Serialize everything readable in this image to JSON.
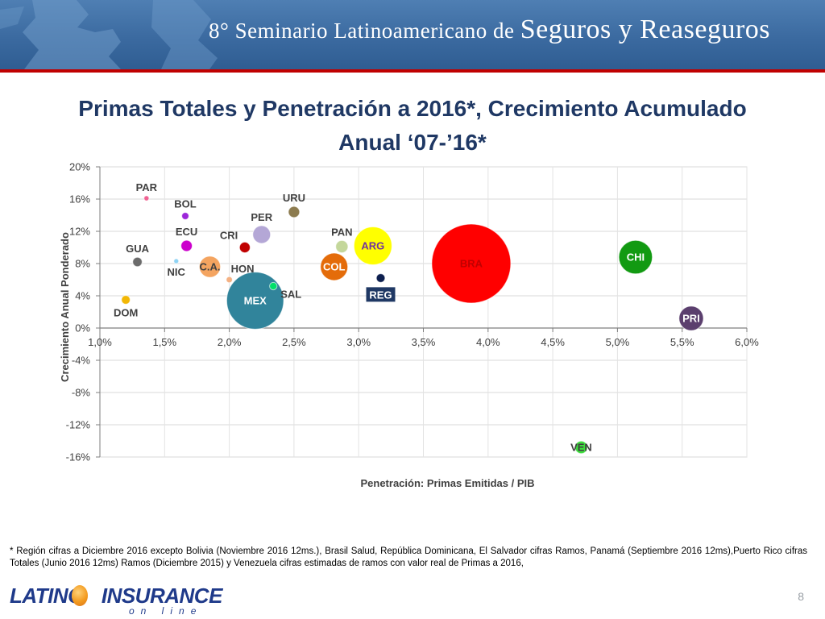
{
  "banner": {
    "title_prefix": "8° Seminario Latinoamericano de ",
    "title_emphasis": "Seguros y Reaseguros"
  },
  "slide": {
    "title_line1": "Primas Totales y Penetración a 2016*, Crecimiento Acumulado",
    "title_line2": "Anual ‘07-’16*",
    "footnote": "* Región cifras a Diciembre 2016 excepto Bolivia (Noviembre 2016 12ms.), Brasil Salud, República Dominicana, El Salvador cifras Ramos, Panamá (Septiembre 2016 12ms),Puerto Rico cifras Totales (Junio 2016 12ms) Ramos (Diciembre 2015) y Venezuela cifras estimadas de ramos con valor real de Primas a 2016,",
    "page_number": "8"
  },
  "logo": {
    "left": "LATINO",
    "right": "INSURANCE",
    "sub": "on line"
  },
  "chart_data": {
    "type": "scatter",
    "bubble": true,
    "title": "",
    "xlabel": "Penetración: Primas Emitidas / PIB",
    "ylabel": "Crecimiento Anual Ponderado",
    "xlim": [
      0.01,
      0.06
    ],
    "ylim": [
      -0.16,
      0.2
    ],
    "x_ticks": [
      0.01,
      0.015,
      0.02,
      0.025,
      0.03,
      0.035,
      0.04,
      0.045,
      0.05,
      0.055,
      0.06
    ],
    "x_tick_labels": [
      "1,0%",
      "1,5%",
      "2,0%",
      "2,5%",
      "3,0%",
      "3,5%",
      "4,0%",
      "4,5%",
      "5,0%",
      "5,5%",
      "6,0%"
    ],
    "y_ticks": [
      0.2,
      0.16,
      0.12,
      0.08,
      0.04,
      0.0,
      -0.04,
      -0.08,
      -0.12,
      -0.16
    ],
    "y_tick_labels": [
      "20%",
      "16%",
      "12%",
      "8%",
      "4%",
      "0%",
      "-4%",
      "-8%",
      "-12%",
      "-16%"
    ],
    "grid": true,
    "legend": "none",
    "points": [
      {
        "label": "PAR",
        "x": 0.0136,
        "y": 0.161,
        "size": 0.04,
        "color": "#f06292",
        "label_pos": "above",
        "label_color": "#404040"
      },
      {
        "label": "BOL",
        "x": 0.0166,
        "y": 0.139,
        "size": 0.08,
        "color": "#9c27d9",
        "label_pos": "above",
        "label_color": "#404040"
      },
      {
        "label": "ECU",
        "x": 0.0167,
        "y": 0.102,
        "size": 0.2,
        "color": "#cc00cc",
        "label_pos": "above",
        "label_color": "#404040"
      },
      {
        "label": "GUA",
        "x": 0.0129,
        "y": 0.082,
        "size": 0.14,
        "color": "#6b6b6b",
        "label_pos": "above",
        "label_color": "#404040"
      },
      {
        "label": "NIC",
        "x": 0.0159,
        "y": 0.083,
        "size": 0.01,
        "color": "#8fd3f4",
        "label_pos": "below",
        "label_color": "#404040"
      },
      {
        "label": "C.A.",
        "x": 0.0185,
        "y": 0.076,
        "size": 0.72,
        "color": "#f4a460",
        "label_pos": "center",
        "label_color": "#404040"
      },
      {
        "label": "DOM",
        "x": 0.012,
        "y": 0.035,
        "size": 0.12,
        "color": "#f2b705",
        "label_pos": "below",
        "label_color": "#404040"
      },
      {
        "label": "CRI",
        "x": 0.0212,
        "y": 0.1,
        "size": 0.18,
        "color": "#c00000",
        "label_pos": "above-left",
        "label_color": "#404040"
      },
      {
        "label": "HON",
        "x": 0.02,
        "y": 0.06,
        "size": 0.06,
        "color": "#f4b183",
        "label_pos": "above-right",
        "label_color": "#404040"
      },
      {
        "label": "PER",
        "x": 0.0225,
        "y": 0.116,
        "size": 0.5,
        "color": "#b4a7d6",
        "label_pos": "above",
        "label_color": "#404040"
      },
      {
        "label": "MEX",
        "x": 0.022,
        "y": 0.034,
        "size": 5.2,
        "color": "#31849b",
        "label_pos": "center",
        "label_color": "#ffffff"
      },
      {
        "label": "SAL",
        "x": 0.0234,
        "y": 0.052,
        "size": 0.09,
        "color": "#00e06a",
        "label_pos": "below-right",
        "label_color": "#404040"
      },
      {
        "label": "URU",
        "x": 0.025,
        "y": 0.144,
        "size": 0.2,
        "color": "#8c7b4f",
        "label_pos": "above",
        "label_color": "#404040"
      },
      {
        "label": "PAN",
        "x": 0.0287,
        "y": 0.101,
        "size": 0.24,
        "color": "#c4d79b",
        "label_pos": "above",
        "label_color": "#404040"
      },
      {
        "label": "COL",
        "x": 0.0281,
        "y": 0.076,
        "size": 1.2,
        "color": "#e46c0a",
        "label_pos": "center",
        "label_color": "#ffffff"
      },
      {
        "label": "ARG",
        "x": 0.0311,
        "y": 0.102,
        "size": 2.3,
        "color": "#ffff00",
        "label_pos": "center",
        "label_color": "#7030a0"
      },
      {
        "label": "REG",
        "x": 0.0317,
        "y": 0.062,
        "size": 0.12,
        "color": "#0d1f4f",
        "label_pos": "below-boxed",
        "label_color": "#ffffff"
      },
      {
        "label": "BRA",
        "x": 0.0387,
        "y": 0.08,
        "size": 10.0,
        "color": "#ff0000",
        "label_pos": "center",
        "label_color": "#c00000"
      },
      {
        "label": "CHI",
        "x": 0.0514,
        "y": 0.088,
        "size": 1.8,
        "color": "#129a12",
        "label_pos": "center",
        "label_color": "#ffffff"
      },
      {
        "label": "PRI",
        "x": 0.0557,
        "y": 0.012,
        "size": 0.95,
        "color": "#5b3f6e",
        "label_pos": "center",
        "label_color": "#ffffff"
      },
      {
        "label": "VEN",
        "x": 0.0472,
        "y": -0.148,
        "size": 0.25,
        "color": "#3ddc3d",
        "label_pos": "center",
        "label_color": "#404040"
      }
    ]
  }
}
